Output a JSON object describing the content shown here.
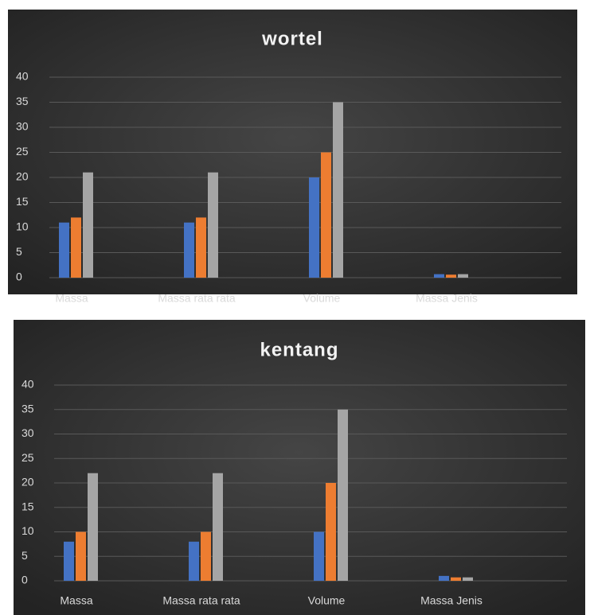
{
  "chart_data": [
    {
      "type": "bar",
      "title": "wortel",
      "categories": [
        "Massa",
        "Massa rata rata",
        "Volume",
        "Massa Jenis"
      ],
      "series": [
        {
          "color": "#4472c4",
          "values": [
            11,
            11,
            20,
            0.7
          ]
        },
        {
          "color": "#ed7d31",
          "values": [
            12,
            12,
            25,
            0.6
          ]
        },
        {
          "color": "#a5a5a5",
          "values": [
            21,
            21,
            35,
            0.7
          ]
        }
      ],
      "ylim": [
        0,
        40
      ],
      "yticks": [
        0,
        5,
        10,
        15,
        20,
        25,
        30,
        35,
        40
      ],
      "grid": true
    },
    {
      "type": "bar",
      "title": "kentang",
      "categories": [
        "Massa",
        "Massa rata rata",
        "Volume",
        "Massa Jenis"
      ],
      "series": [
        {
          "color": "#4472c4",
          "values": [
            8,
            8,
            10,
            1
          ]
        },
        {
          "color": "#ed7d31",
          "values": [
            10,
            10,
            20,
            0.7
          ]
        },
        {
          "color": "#a5a5a5",
          "values": [
            22,
            22,
            35,
            0.7
          ]
        }
      ],
      "ylim": [
        0,
        40
      ],
      "yticks": [
        0,
        5,
        10,
        15,
        20,
        25,
        30,
        35,
        40
      ],
      "grid": true
    }
  ]
}
